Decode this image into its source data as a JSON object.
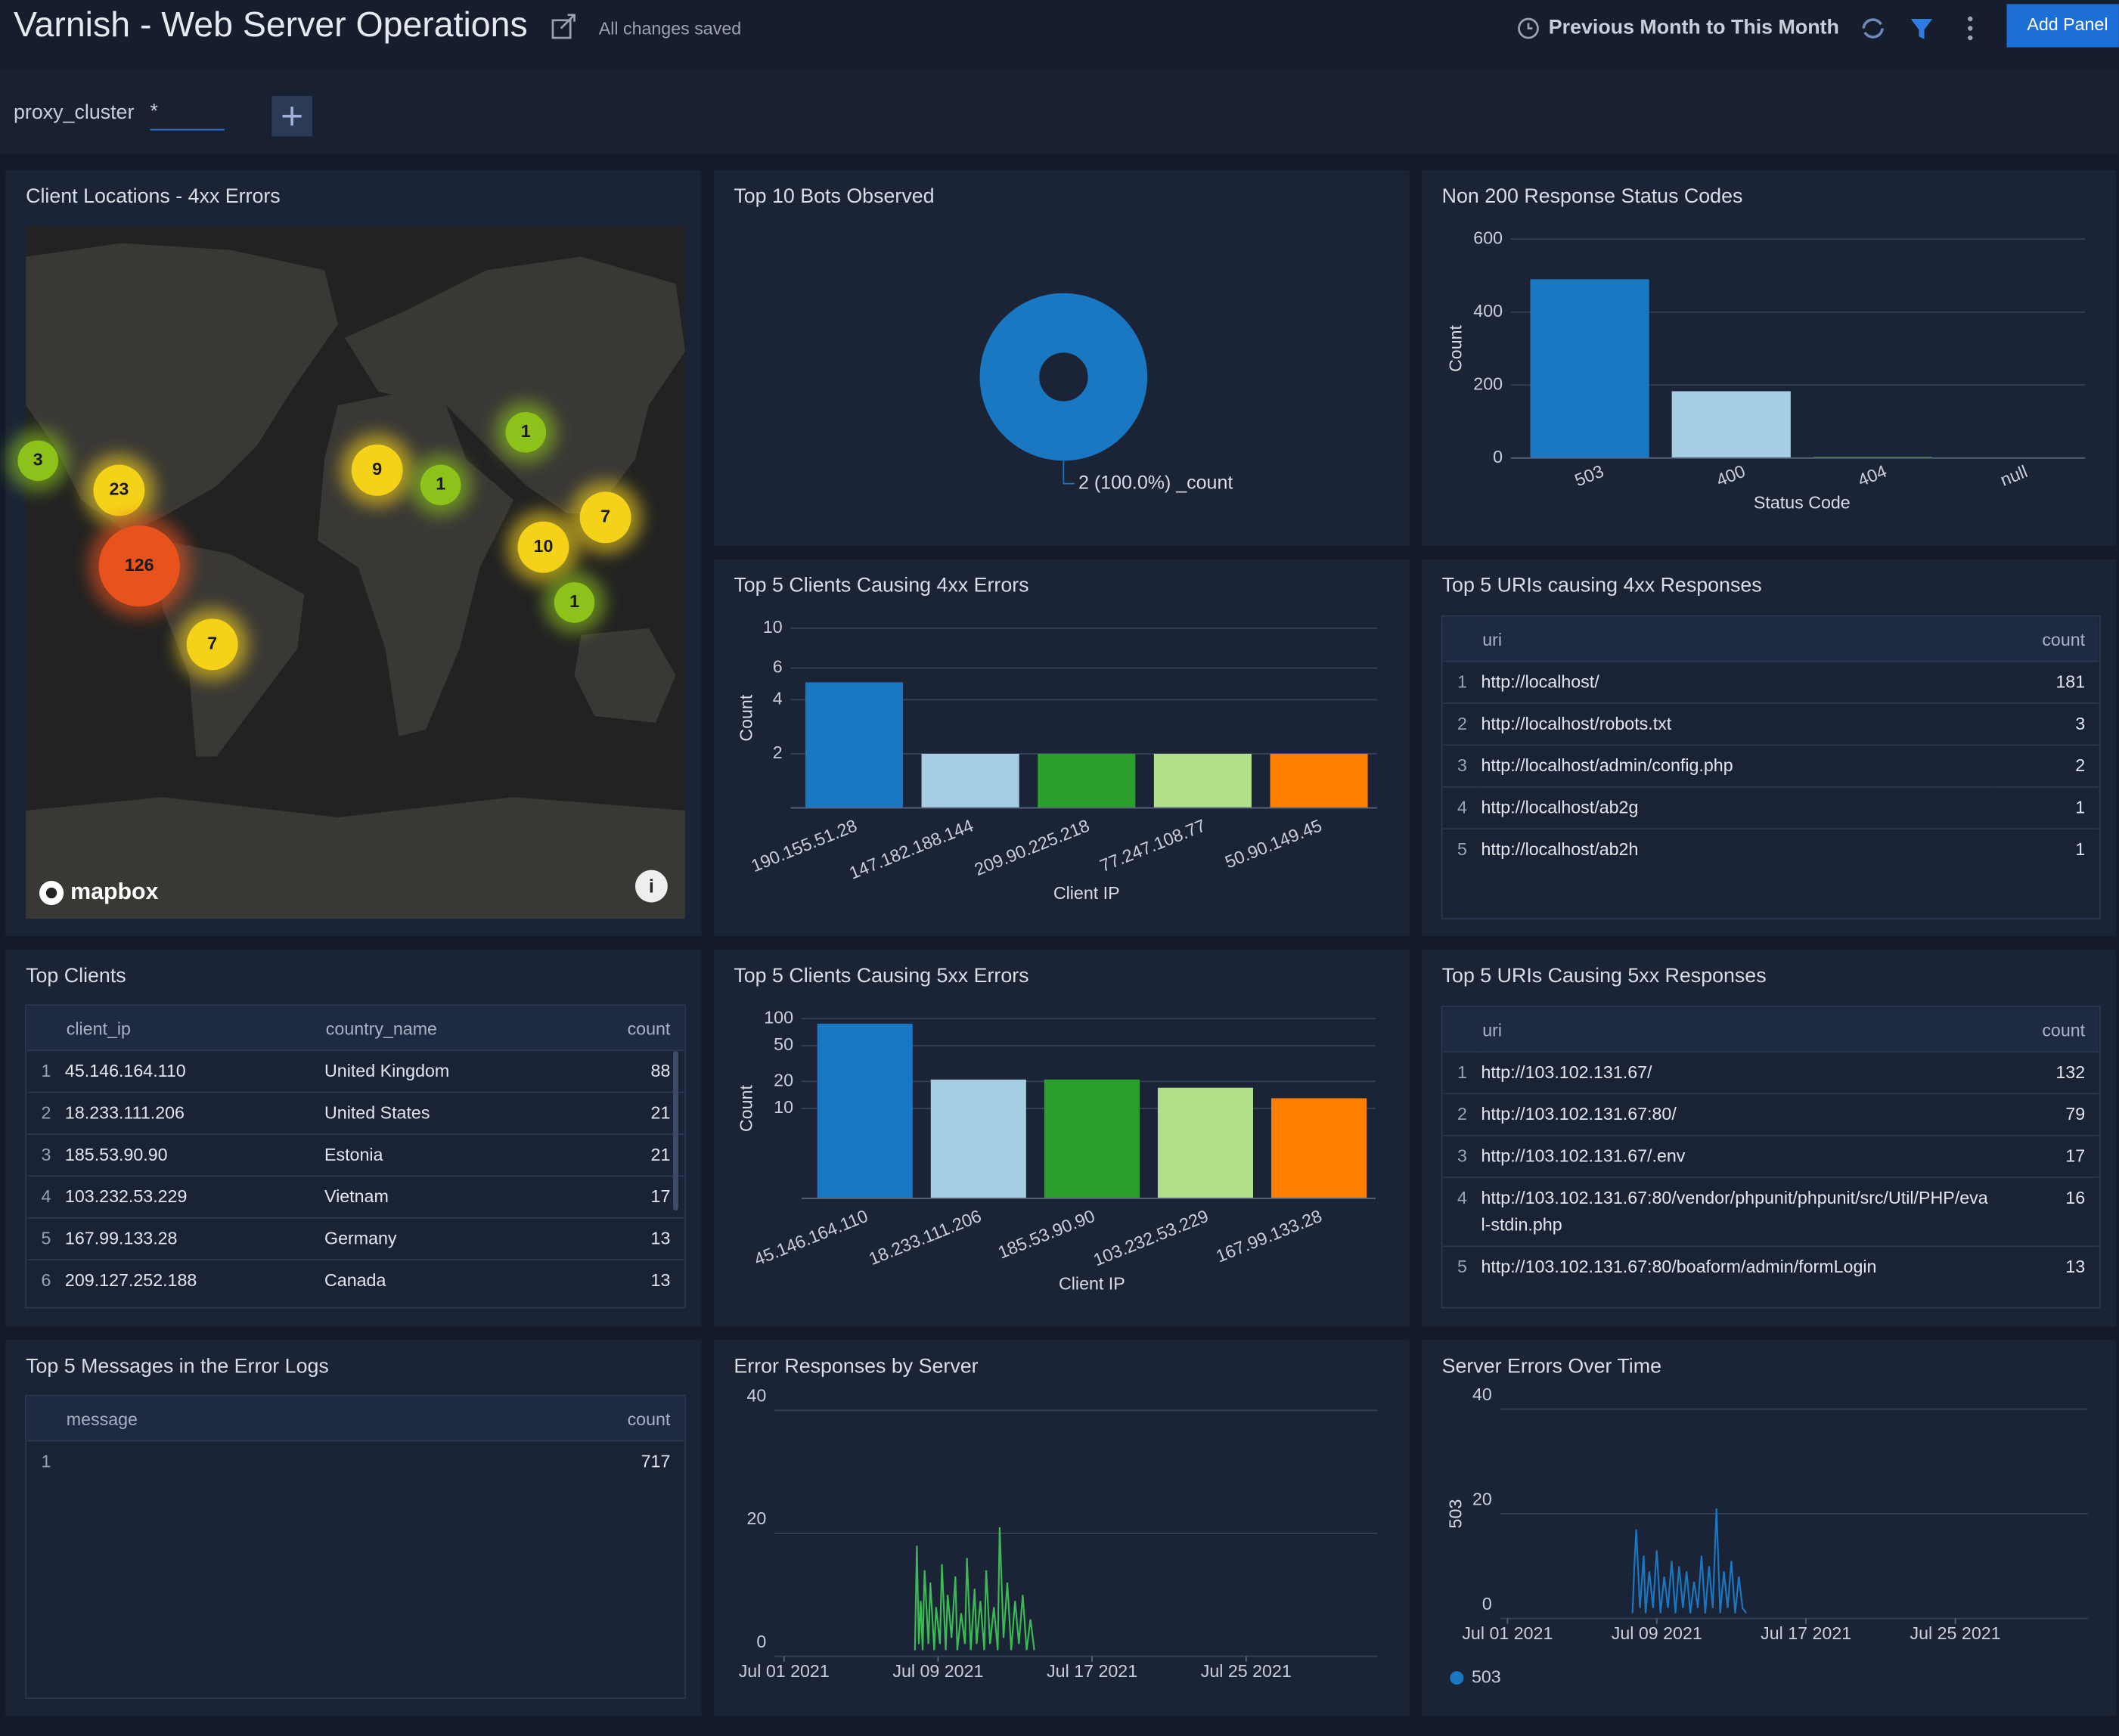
{
  "header": {
    "title": "Varnish - Web Server Operations",
    "status": "All changes saved",
    "time_range": "Previous Month to This Month",
    "add_panel": "Add Panel"
  },
  "filter": {
    "label": "proxy_cluster",
    "value": "*"
  },
  "panels": {
    "client_locations": {
      "type": "map",
      "title": "Client Locations - 4xx Errors",
      "attribution": "mapbox",
      "clusters": [
        3,
        23,
        126,
        7,
        9,
        1,
        1,
        10,
        7,
        1
      ]
    },
    "top_bots": {
      "type": "pie",
      "title": "Top 10 Bots Observed",
      "categories": [
        "_count"
      ],
      "values": [
        2
      ],
      "value_labels": [
        "2 (100.0%) _count"
      ],
      "color": "#1a78c2"
    },
    "status_codes": {
      "type": "bar",
      "title": "Non 200 Response Status Codes",
      "x_label": "Status Code",
      "y_label": "Count",
      "categories": [
        "503",
        "400",
        "404",
        "null"
      ],
      "values": [
        490,
        183,
        3,
        0
      ],
      "colors": [
        "#1a78c2",
        "#a6cee3",
        "#33a02c",
        "#b2df8a"
      ],
      "ylim": [
        0,
        600
      ],
      "yticks": [
        0,
        200,
        400,
        600
      ],
      "log": false
    },
    "clients_4xx": {
      "type": "bar",
      "title": "Top 5 Clients Causing 4xx Errors",
      "x_label": "Client IP",
      "y_label": "Count",
      "categories": [
        "190.155.51.28",
        "147.182.188.144",
        "209.90.225.218",
        "77.247.108.77",
        "50.90.149.45"
      ],
      "values": [
        5,
        2,
        2,
        2,
        2
      ],
      "colors": [
        "#1a78c2",
        "#a6cee3",
        "#2ca02c",
        "#b2df8a",
        "#ff7f00"
      ],
      "ylim": [
        1,
        10
      ],
      "yticks": [
        2,
        4,
        6,
        10
      ],
      "log": true
    },
    "uris_4xx": {
      "type": "table",
      "title": "Top 5 URIs causing 4xx Responses",
      "columns": [
        "uri",
        "count"
      ],
      "rows": [
        [
          1,
          "http://localhost/",
          181
        ],
        [
          2,
          "http://localhost/robots.txt",
          3
        ],
        [
          3,
          "http://localhost/admin/config.php",
          2
        ],
        [
          4,
          "http://localhost/ab2g",
          1
        ],
        [
          5,
          "http://localhost/ab2h",
          1
        ]
      ]
    },
    "top_clients": {
      "type": "table",
      "title": "Top Clients",
      "columns": [
        "client_ip",
        "country_name",
        "count"
      ],
      "rows": [
        [
          1,
          "45.146.164.110",
          "United Kingdom",
          88
        ],
        [
          2,
          "18.233.111.206",
          "United States",
          21
        ],
        [
          3,
          "185.53.90.90",
          "Estonia",
          21
        ],
        [
          4,
          "103.232.53.229",
          "Vietnam",
          17
        ],
        [
          5,
          "167.99.133.28",
          "Germany",
          13
        ],
        [
          6,
          "209.127.252.188",
          "Canada",
          13
        ]
      ]
    },
    "clients_5xx": {
      "type": "bar",
      "title": "Top 5 Clients Causing 5xx Errors",
      "x_label": "Client IP",
      "y_label": "Count",
      "categories": [
        "45.146.164.110",
        "18.233.111.206",
        "185.53.90.90",
        "103.232.53.229",
        "167.99.133.28"
      ],
      "values": [
        88,
        21,
        21,
        17,
        13
      ],
      "colors": [
        "#1a78c2",
        "#a6cee3",
        "#2ca02c",
        "#b2df8a",
        "#ff7f00"
      ],
      "ylim": [
        1,
        100
      ],
      "yticks": [
        10,
        20,
        50,
        100
      ],
      "log": true
    },
    "uris_5xx": {
      "type": "table",
      "title": "Top 5 URIs Causing 5xx Responses",
      "columns": [
        "uri",
        "count"
      ],
      "rows": [
        [
          1,
          "http://103.102.131.67/",
          132
        ],
        [
          2,
          "http://103.102.131.67:80/",
          79
        ],
        [
          3,
          "http://103.102.131.67/.env",
          17
        ],
        [
          4,
          "http://103.102.131.67:80/vendor/phpunit/phpunit/src/Util/PHP/eval-stdin.php",
          16
        ],
        [
          5,
          "http://103.102.131.67:80/boaform/admin/formLogin",
          13
        ]
      ]
    },
    "error_messages": {
      "type": "table",
      "title": "Top 5 Messages in the Error Logs",
      "columns": [
        "message",
        "count"
      ],
      "rows": [
        [
          1,
          717
        ]
      ]
    },
    "error_by_server": {
      "type": "line",
      "title": "Error Responses by Server",
      "x": [
        7.8,
        7.9,
        8.0,
        8.1,
        8.2,
        8.3,
        8.5,
        8.6,
        8.8,
        8.9,
        9.1,
        9.2,
        9.4,
        9.5,
        9.7,
        9.9,
        10.0,
        10.2,
        10.4,
        10.5,
        10.7,
        10.9,
        11.0,
        11.2,
        11.4,
        11.5,
        11.7,
        11.9,
        12.1,
        12.2,
        12.4,
        12.6,
        12.8,
        13.0,
        13.2,
        13.4,
        13.6,
        13.8,
        14.0
      ],
      "xlim": [
        0.5,
        31.8
      ],
      "xticks": [
        {
          "value": 1,
          "label": "Jul 01 2021"
        },
        {
          "value": 9,
          "label": "Jul 09 2021"
        },
        {
          "value": 17,
          "label": "Jul 17 2021"
        },
        {
          "value": 25,
          "label": "Jul 25 2021"
        }
      ],
      "ylim": [
        0,
        40
      ],
      "yticks": [
        0,
        20,
        40
      ],
      "series": [
        {
          "color": "#3cba54",
          "values": [
            1,
            18,
            2,
            9,
            1,
            14,
            2,
            12,
            1,
            8,
            2,
            15,
            1,
            10,
            3,
            13,
            1,
            7,
            2,
            16,
            1,
            11,
            2,
            9,
            1,
            14,
            2,
            8,
            1,
            21,
            3,
            12,
            1,
            9,
            2,
            10,
            1,
            6,
            1
          ]
        }
      ]
    },
    "server_errors": {
      "type": "line",
      "title": "Server Errors Over Time",
      "y_label": "503",
      "x": [
        7.7,
        7.8,
        7.9,
        8.1,
        8.3,
        8.4,
        8.6,
        8.8,
        9.0,
        9.2,
        9.4,
        9.6,
        9.8,
        10.0,
        10.2,
        10.4,
        10.6,
        10.8,
        11.0,
        11.2,
        11.4,
        11.6,
        11.8,
        12.0,
        12.2,
        12.4,
        12.6,
        12.8,
        13.0,
        13.2,
        13.4,
        13.6,
        13.8
      ],
      "xlim": [
        0.6,
        32.1
      ],
      "xticks": [
        {
          "value": 1,
          "label": "Jul 01 2021"
        },
        {
          "value": 9,
          "label": "Jul 09 2021"
        },
        {
          "value": 17,
          "label": "Jul 17 2021"
        },
        {
          "value": 25,
          "label": "Jul 25 2021"
        }
      ],
      "ylim": [
        0,
        40
      ],
      "yticks": [
        0,
        20,
        40
      ],
      "series": [
        {
          "name": "503",
          "color": "#1a78c2",
          "values": [
            1,
            10,
            17,
            2,
            12,
            1,
            9,
            2,
            13,
            1,
            8,
            2,
            11,
            1,
            10,
            2,
            9,
            1,
            7,
            2,
            12,
            1,
            10,
            2,
            21,
            1,
            9,
            2,
            11,
            1,
            8,
            2,
            1
          ]
        }
      ]
    }
  }
}
